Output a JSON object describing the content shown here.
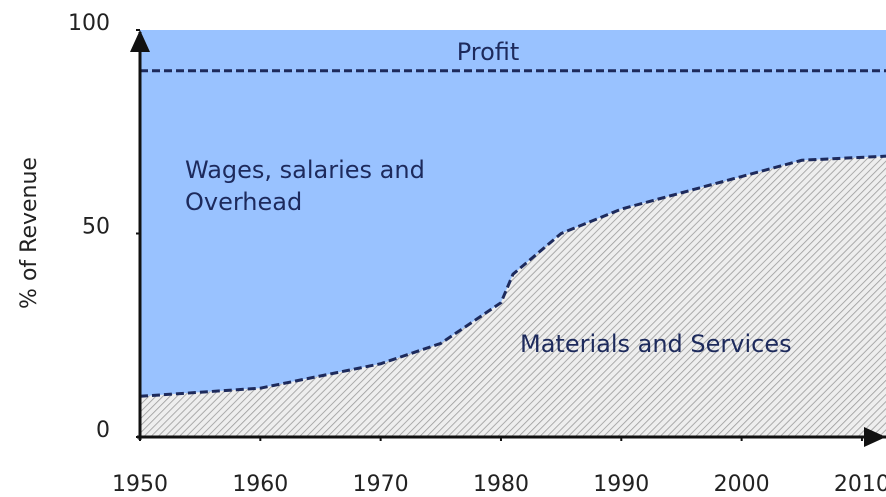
{
  "chart_data": {
    "type": "area",
    "stacked": true,
    "y_label": "% of Revenue",
    "x": [
      1950,
      1960,
      1970,
      1975,
      1980,
      1981,
      1985,
      1990,
      2000,
      2005,
      2012
    ],
    "series": [
      {
        "name": "Materials and Services",
        "color": "#d4d4d4",
        "hatch": true,
        "values": [
          10,
          12,
          18,
          23,
          33,
          40,
          50,
          56,
          64,
          68,
          69
        ]
      },
      {
        "name": "Wages, salaries and Overhead",
        "color": "#99c2ff",
        "values": [
          80,
          78,
          72,
          67,
          57,
          50,
          40,
          34,
          26,
          22,
          21
        ]
      },
      {
        "name": "Profit",
        "color": "#99c2ff",
        "values": [
          10,
          10,
          10,
          10,
          10,
          10,
          10,
          10,
          10,
          10,
          10
        ]
      }
    ],
    "xlim": [
      1950,
      2012
    ],
    "xticks": [
      1950,
      1960,
      1970,
      1980,
      1990,
      2000,
      2010
    ],
    "ylim": [
      0,
      100
    ],
    "yticks": [
      0,
      50,
      100
    ]
  }
}
